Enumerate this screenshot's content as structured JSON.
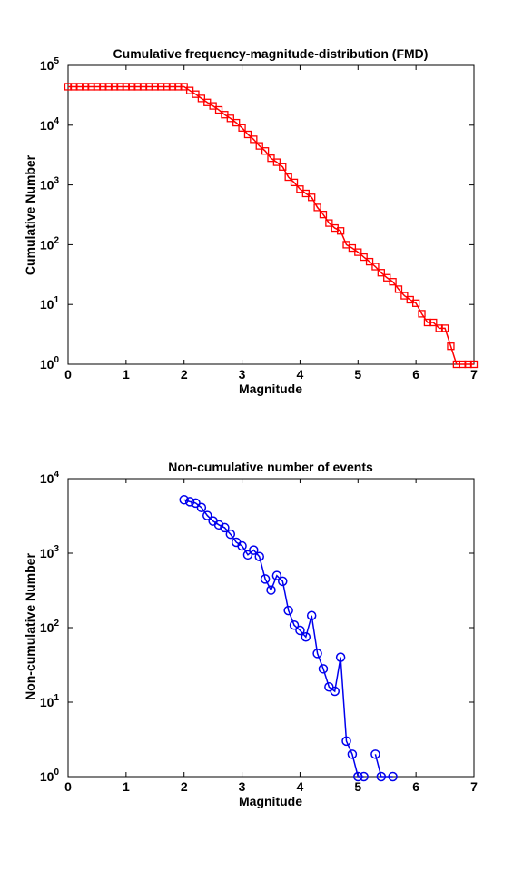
{
  "chart_data": [
    {
      "type": "line",
      "title": "Cumulative frequency-magnitude-distribution (FMD)",
      "xlabel": "Magnitude",
      "ylabel": "Cumulative Number",
      "xlim": [
        0,
        7
      ],
      "ylim": [
        1,
        100000
      ],
      "yscale": "log",
      "xticks": [
        "0",
        "1",
        "2",
        "3",
        "4",
        "5",
        "6",
        "7"
      ],
      "yticks": [
        {
          "base": "10",
          "exp": "0"
        },
        {
          "base": "10",
          "exp": "1"
        },
        {
          "base": "10",
          "exp": "2"
        },
        {
          "base": "10",
          "exp": "3"
        },
        {
          "base": "10",
          "exp": "4"
        },
        {
          "base": "10",
          "exp": "5"
        }
      ],
      "grid": false,
      "marker": "square",
      "color": "#ff0000",
      "series": [
        {
          "x": [
            0,
            0.1,
            0.2,
            0.3,
            0.4,
            0.5,
            0.6,
            0.7,
            0.8,
            0.9,
            1.0,
            1.1,
            1.2,
            1.3,
            1.4,
            1.5,
            1.6,
            1.7,
            1.8,
            1.9,
            2.0,
            2.1,
            2.2,
            2.3,
            2.4,
            2.5,
            2.6,
            2.7,
            2.8,
            2.9,
            3.0,
            3.1,
            3.2,
            3.3,
            3.4,
            3.5,
            3.6,
            3.7,
            3.8,
            3.9,
            4.0,
            4.1,
            4.2,
            4.3,
            4.4,
            4.5,
            4.6,
            4.7,
            4.8,
            4.9,
            5.0,
            5.1,
            5.2,
            5.3,
            5.4,
            5.5,
            5.6,
            5.7,
            5.8,
            5.9,
            6.0,
            6.1,
            6.2,
            6.3,
            6.4,
            6.5,
            6.6,
            6.7,
            6.8,
            6.9,
            7.0
          ],
          "y": [
            44000,
            44000,
            44000,
            44000,
            44000,
            44000,
            44000,
            44000,
            44000,
            44000,
            44000,
            44000,
            44000,
            44000,
            44000,
            44000,
            44000,
            44000,
            44000,
            44000,
            44000,
            38000,
            33000,
            28000,
            24000,
            21000,
            18000,
            15000,
            13000,
            11000,
            9000,
            7000,
            5800,
            4500,
            3700,
            2800,
            2400,
            2000,
            1350,
            1100,
            850,
            720,
            620,
            420,
            320,
            230,
            190,
            170,
            100,
            88,
            75,
            62,
            52,
            43,
            34,
            28,
            24,
            18,
            14,
            12,
            10.5,
            7,
            5,
            5,
            4,
            4,
            2,
            1,
            1,
            1,
            1
          ]
        }
      ]
    },
    {
      "type": "line",
      "title": "Non-cumulative number of events",
      "xlabel": "Magnitude",
      "ylabel": "Non-cumulative Number",
      "xlim": [
        0,
        7
      ],
      "ylim": [
        1,
        10000
      ],
      "yscale": "log",
      "xticks": [
        "0",
        "1",
        "2",
        "3",
        "4",
        "5",
        "6",
        "7"
      ],
      "yticks": [
        {
          "base": "10",
          "exp": "0"
        },
        {
          "base": "10",
          "exp": "1"
        },
        {
          "base": "10",
          "exp": "2"
        },
        {
          "base": "10",
          "exp": "3"
        },
        {
          "base": "10",
          "exp": "4"
        }
      ],
      "grid": false,
      "marker": "circle",
      "color": "#0000ee",
      "series": [
        {
          "segments": [
            {
              "x": [
                2.0,
                2.1,
                2.2,
                2.3,
                2.4,
                2.5,
                2.6,
                2.7,
                2.8,
                2.9,
                3.0,
                3.1,
                3.2,
                3.3,
                3.4,
                3.5,
                3.6,
                3.7,
                3.8,
                3.9,
                4.0,
                4.1,
                4.2,
                4.3,
                4.4,
                4.5,
                4.6,
                4.7,
                4.8,
                4.9,
                5.0,
                5.1
              ],
              "y": [
                5200,
                4900,
                4700,
                4100,
                3200,
                2700,
                2400,
                2200,
                1800,
                1400,
                1250,
                950,
                1100,
                900,
                450,
                320,
                500,
                420,
                170,
                108,
                92,
                75,
                145,
                45,
                28,
                16,
                14,
                40,
                3,
                2,
                1,
                1
              ]
            },
            {
              "x": [
                5.3,
                5.4,
                5.6
              ],
              "y": [
                2,
                1,
                1
              ]
            }
          ]
        }
      ]
    }
  ]
}
